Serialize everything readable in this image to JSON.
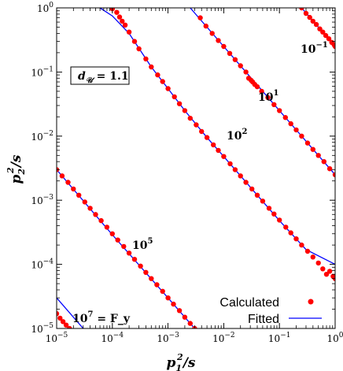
{
  "chart_data": {
    "type": "scatter",
    "xlabel": "p_1^2/s",
    "ylabel": "p_2^2/s",
    "xscale": "log",
    "yscale": "log",
    "xlim": [
      1e-05,
      1
    ],
    "ylim": [
      1e-05,
      1
    ],
    "x_tick_labels": [
      {
        "mantissa": "10",
        "exp": "−5",
        "value": 1e-05
      },
      {
        "mantissa": "10",
        "exp": "−4",
        "value": 0.0001
      },
      {
        "mantissa": "10",
        "exp": "−3",
        "value": 0.001
      },
      {
        "mantissa": "10",
        "exp": "−2",
        "value": 0.01
      },
      {
        "mantissa": "10",
        "exp": "−1",
        "value": 0.1
      },
      {
        "mantissa": "10",
        "exp": "0",
        "value": 1
      }
    ],
    "y_tick_labels": [
      {
        "mantissa": "10",
        "exp": "−5",
        "value": 1e-05
      },
      {
        "mantissa": "10",
        "exp": "−4",
        "value": 0.0001
      },
      {
        "mantissa": "10",
        "exp": "−3",
        "value": 0.001
      },
      {
        "mantissa": "10",
        "exp": "−2",
        "value": 0.01
      },
      {
        "mantissa": "10",
        "exp": "−1",
        "value": 0.1
      },
      {
        "mantissa": "10",
        "exp": "0",
        "value": 1
      }
    ],
    "parameter_box": {
      "text": "d",
      "sub": "𝒰",
      "rest": " = 1.1"
    },
    "legend": {
      "position": "bottom-right",
      "entries": [
        {
          "label": "Calculated",
          "marker": "dot",
          "color": "#ff0000"
        },
        {
          "label": "Fitted",
          "marker": "line",
          "color": "#0000ff"
        }
      ]
    },
    "colors": {
      "calculated": "#ff0000",
      "fitted": "#0000ff"
    },
    "curves": [
      {
        "label": {
          "mantissa": "10",
          "exp": "−1",
          "suffix": ""
        },
        "fitted": [
          [
            0.25,
            1
          ],
          [
            1,
            0.25
          ]
        ],
        "calculated": [
          [
            0.25,
            1
          ],
          [
            0.3,
            0.82
          ],
          [
            0.35,
            0.71
          ],
          [
            0.4,
            0.62
          ],
          [
            0.46,
            0.55
          ],
          [
            0.53,
            0.47
          ],
          [
            0.6,
            0.42
          ],
          [
            0.68,
            0.37
          ],
          [
            0.77,
            0.33
          ],
          [
            0.87,
            0.29
          ],
          [
            0.96,
            0.265
          ],
          [
            1,
            0.25
          ]
        ]
      },
      {
        "label": {
          "mantissa": "10",
          "exp": "1",
          "suffix": ""
        },
        "fitted": [
          [
            0.0025,
            1
          ],
          [
            0.005,
            0.5
          ],
          [
            0.01,
            0.25
          ],
          [
            0.025,
            0.1
          ],
          [
            0.05,
            0.05
          ],
          [
            0.1,
            0.025
          ],
          [
            0.25,
            0.01
          ],
          [
            0.5,
            0.005
          ],
          [
            1,
            0.0025
          ]
        ],
        "calculated": [
          [
            0.0038,
            0.7
          ],
          [
            0.0048,
            0.52
          ],
          [
            0.0062,
            0.4
          ],
          [
            0.008,
            0.31
          ],
          [
            0.01,
            0.25
          ],
          [
            0.0128,
            0.195
          ],
          [
            0.016,
            0.156
          ],
          [
            0.02,
            0.125
          ],
          [
            0.025,
            0.1
          ],
          [
            0.028,
            0.08
          ],
          [
            0.031,
            0.074
          ],
          [
            0.033,
            0.07
          ],
          [
            0.036,
            0.064
          ],
          [
            0.04,
            0.059
          ],
          [
            0.048,
            0.05
          ],
          [
            0.062,
            0.04
          ],
          [
            0.08,
            0.031
          ],
          [
            0.1,
            0.025
          ],
          [
            0.128,
            0.0195
          ],
          [
            0.16,
            0.0156
          ],
          [
            0.2,
            0.0125
          ],
          [
            0.25,
            0.01
          ],
          [
            0.32,
            0.0078
          ],
          [
            0.4,
            0.0062
          ],
          [
            0.5,
            0.005
          ],
          [
            0.63,
            0.004
          ],
          [
            0.8,
            0.0031
          ],
          [
            1,
            0.0025
          ]
        ]
      },
      {
        "label": {
          "mantissa": "10",
          "exp": "2",
          "suffix": ""
        },
        "fitted": [
          [
            6e-05,
            1
          ],
          [
            0.0001,
            0.75
          ],
          [
            0.0002,
            0.4
          ],
          [
            0.0005,
            0.12
          ],
          [
            0.001,
            0.055
          ],
          [
            0.002,
            0.025
          ],
          [
            0.005,
            0.0095
          ],
          [
            0.01,
            0.0048
          ],
          [
            0.03,
            0.0016
          ],
          [
            0.1,
            0.00048
          ],
          [
            0.3,
            0.00017
          ],
          [
            1,
            0.0001
          ]
        ],
        "calculated": [
          [
            0.0001,
            0.97
          ],
          [
            0.00012,
            0.85
          ],
          [
            0.000135,
            0.72
          ],
          [
            0.00015,
            0.62
          ],
          [
            0.00017,
            0.54
          ],
          [
            0.0002,
            0.42
          ],
          [
            0.00025,
            0.3
          ],
          [
            0.0003,
            0.23
          ],
          [
            0.0004,
            0.16
          ],
          [
            0.0005,
            0.12
          ],
          [
            0.00065,
            0.09
          ],
          [
            0.0008,
            0.071
          ],
          [
            0.001,
            0.055
          ],
          [
            0.0013,
            0.041
          ],
          [
            0.0016,
            0.032
          ],
          [
            0.002,
            0.025
          ],
          [
            0.0025,
            0.019
          ],
          [
            0.0032,
            0.015
          ],
          [
            0.004,
            0.0118
          ],
          [
            0.005,
            0.0095
          ],
          [
            0.0065,
            0.0073
          ],
          [
            0.008,
            0.006
          ],
          [
            0.01,
            0.0048
          ],
          [
            0.013,
            0.0037
          ],
          [
            0.016,
            0.003
          ],
          [
            0.02,
            0.0024
          ],
          [
            0.025,
            0.0019
          ],
          [
            0.032,
            0.0015
          ],
          [
            0.04,
            0.0012
          ],
          [
            0.05,
            0.00097
          ],
          [
            0.065,
            0.00075
          ],
          [
            0.08,
            0.00061
          ],
          [
            0.1,
            0.00049
          ],
          [
            0.13,
            0.00038
          ],
          [
            0.16,
            0.00031
          ],
          [
            0.2,
            0.00025
          ],
          [
            0.25,
            0.0002
          ],
          [
            0.32,
            0.00016
          ],
          [
            0.4,
            0.00013
          ],
          [
            0.5,
            0.000105
          ],
          [
            0.6,
            8.5e-05
          ],
          [
            0.7,
            7e-05
          ],
          [
            0.8,
            7.8e-05
          ],
          [
            0.92,
            6.5e-05
          ],
          [
            1,
            6e-05
          ]
        ]
      },
      {
        "label": {
          "mantissa": "10",
          "exp": "5",
          "suffix": ""
        },
        "fitted": [
          [
            1e-05,
            0.003
          ],
          [
            0.0001,
            0.00029
          ],
          [
            0.001,
            3e-05
          ],
          [
            0.003,
            1e-05
          ]
        ],
        "calculated": [
          [
            1e-05,
            0.003
          ],
          [
            1.25e-05,
            0.0024
          ],
          [
            1.6e-05,
            0.0019
          ],
          [
            2e-05,
            0.0015
          ],
          [
            2.5e-05,
            0.0012
          ],
          [
            3.2e-05,
            0.00094
          ],
          [
            4e-05,
            0.00075
          ],
          [
            5e-05,
            0.0006
          ],
          [
            6.3e-05,
            0.00048
          ],
          [
            8e-05,
            0.00038
          ],
          [
            0.0001,
            0.0003
          ],
          [
            0.000125,
            0.00024
          ],
          [
            0.00016,
            0.00019
          ],
          [
            0.0002,
            0.00015
          ],
          [
            0.00025,
            0.00012
          ],
          [
            0.00032,
            9.4e-05
          ],
          [
            0.0004,
            7.5e-05
          ],
          [
            0.0005,
            6e-05
          ],
          [
            0.00063,
            4.8e-05
          ],
          [
            0.0008,
            3.8e-05
          ],
          [
            0.001,
            3e-05
          ],
          [
            0.00125,
            2.4e-05
          ],
          [
            0.0016,
            1.9e-05
          ],
          [
            0.002,
            1.5e-05
          ],
          [
            0.0025,
            1.2e-05
          ],
          [
            0.003,
            1e-05
          ]
        ]
      },
      {
        "label": {
          "mantissa": "10",
          "exp": "7",
          "suffix": " = F_y"
        },
        "fitted": [
          [
            1e-05,
            3e-05
          ],
          [
            3e-05,
            1e-05
          ]
        ],
        "calculated": [
          [
            1e-05,
            1.7e-05
          ],
          [
            1.15e-05,
            1.45e-05
          ],
          [
            1.3e-05,
            1.28e-05
          ],
          [
            1.48e-05,
            1.13e-05
          ],
          [
            1.7e-05,
            1e-05
          ]
        ]
      }
    ]
  }
}
